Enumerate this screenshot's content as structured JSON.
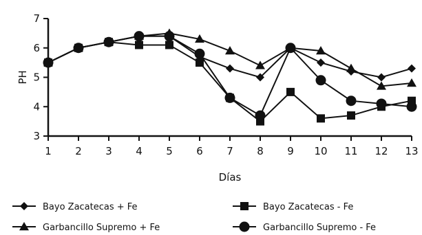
{
  "chart_data": {
    "type": "line",
    "title": "",
    "xlabel": "Días",
    "ylabel": "PH",
    "xlim": [
      1,
      13
    ],
    "ylim": [
      3,
      7
    ],
    "x": [
      1,
      2,
      3,
      4,
      5,
      6,
      7,
      8,
      9,
      10,
      11,
      12,
      13
    ],
    "yticks": [
      3,
      4,
      5,
      6,
      7
    ],
    "grid": false,
    "legend_position": "bottom",
    "series": [
      {
        "name": "Bayo Zacatecas + Fe",
        "marker": "diamond",
        "values": [
          5.5,
          6.0,
          6.2,
          6.4,
          6.4,
          5.7,
          5.3,
          5.0,
          6.0,
          5.5,
          5.2,
          5.0,
          5.3
        ]
      },
      {
        "name": "Bayo Zacatecas - Fe",
        "marker": "square",
        "values": [
          5.5,
          6.0,
          6.2,
          6.1,
          6.1,
          5.5,
          4.3,
          3.5,
          4.5,
          3.6,
          3.7,
          4.0,
          4.2
        ]
      },
      {
        "name": "Garbancillo Supremo + Fe",
        "marker": "triangle",
        "values": [
          5.5,
          6.0,
          6.2,
          6.4,
          6.5,
          6.3,
          5.9,
          5.4,
          6.0,
          5.9,
          5.3,
          4.7,
          4.8
        ]
      },
      {
        "name": "Garbancillo Supremo - Fe",
        "marker": "circle",
        "values": [
          5.5,
          6.0,
          6.2,
          6.4,
          6.4,
          5.8,
          4.3,
          3.7,
          6.0,
          4.9,
          4.2,
          4.1,
          4.0
        ]
      }
    ]
  }
}
